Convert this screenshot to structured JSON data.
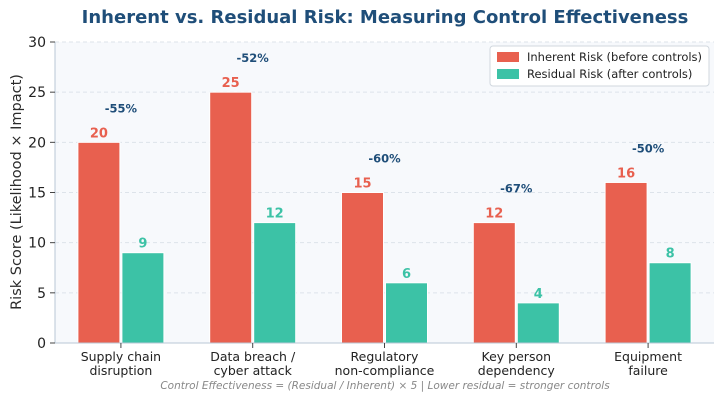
{
  "chart_data": {
    "type": "bar",
    "title": "Inherent vs. Residual Risk: Measuring Control Effectiveness",
    "ylabel": "Risk Score (Likelihood × Impact)",
    "xlabel": "",
    "ylim": [
      0,
      30
    ],
    "yticks": [
      0,
      5,
      10,
      15,
      20,
      25,
      30
    ],
    "grid": true,
    "legend_position": "top-right",
    "categories": [
      "Supply chain\ndisruption",
      "Data breach /\ncyber attack",
      "Regulatory\nnon-compliance",
      "Key person\ndependency",
      "Equipment\nfailure"
    ],
    "series": [
      {
        "name": "Inherent Risk (before controls)",
        "values": [
          20,
          25,
          15,
          12,
          16
        ],
        "color": "#e8604f"
      },
      {
        "name": "Residual Risk (after controls)",
        "values": [
          9,
          12,
          6,
          4,
          8
        ],
        "color": "#3cc2a6"
      }
    ],
    "reduction_labels": [
      "-55%",
      "-52%",
      "-60%",
      "-67%",
      "-50%"
    ],
    "caption": "Control Effectiveness = (Residual / Inherent) × 5 | Lower residual = stronger controls"
  }
}
